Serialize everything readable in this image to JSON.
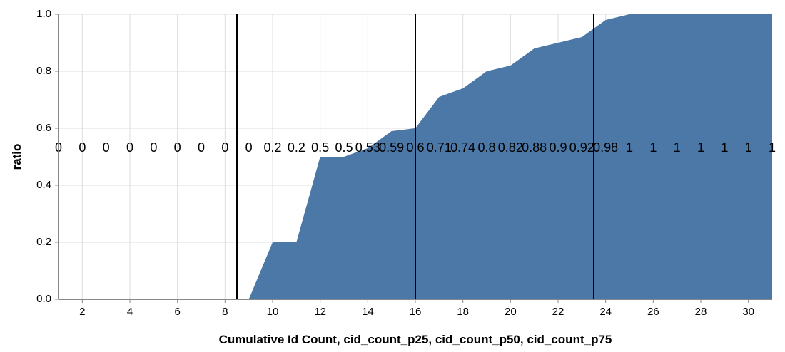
{
  "chart_data": {
    "type": "area",
    "xlabel": "Cumulative Id Count, cid_count_p25, cid_count_p50, cid_count_p75",
    "ylabel": "ratio",
    "xlim": [
      1,
      31
    ],
    "ylim": [
      0,
      1
    ],
    "grid": true,
    "area_color": "#4c78a8",
    "x_ticks": [
      2,
      4,
      6,
      8,
      10,
      12,
      14,
      16,
      18,
      20,
      22,
      24,
      26,
      28,
      30
    ],
    "y_ticks": [
      0.0,
      0.2,
      0.4,
      0.6,
      0.8,
      1.0
    ],
    "y_tick_labels": [
      "0.0",
      "0.2",
      "0.4",
      "0.6",
      "0.8",
      "1.0"
    ],
    "x": [
      1,
      2,
      3,
      4,
      5,
      6,
      7,
      8,
      9,
      10,
      11,
      12,
      13,
      14,
      15,
      16,
      17,
      18,
      19,
      20,
      21,
      22,
      23,
      24,
      25,
      26,
      27,
      28,
      29,
      30,
      31
    ],
    "values": [
      0,
      0,
      0,
      0,
      0,
      0,
      0,
      0,
      0,
      0.2,
      0.2,
      0.5,
      0.5,
      0.53,
      0.59,
      0.6,
      0.71,
      0.74,
      0.8,
      0.82,
      0.88,
      0.9,
      0.92,
      0.98,
      1,
      1,
      1,
      1,
      1,
      1,
      1
    ],
    "labels": [
      "0",
      "0",
      "0",
      "0",
      "0",
      "0",
      "0",
      "0",
      "0",
      "0.2",
      "0.2",
      "0.5",
      "0.5",
      "0.53",
      "0.59",
      "0.6",
      "0.71",
      "0.74",
      "0.8",
      "0.82",
      "0.88",
      "0.9",
      "0.92",
      "0.98",
      "1",
      "1",
      "1",
      "1",
      "1",
      "1",
      "1"
    ],
    "label_y": 0.53,
    "rules": [
      {
        "name": "cid_count_p25",
        "x": 8.5
      },
      {
        "name": "cid_count_p50",
        "x": 16
      },
      {
        "name": "cid_count_p75",
        "x": 23.5
      }
    ]
  }
}
